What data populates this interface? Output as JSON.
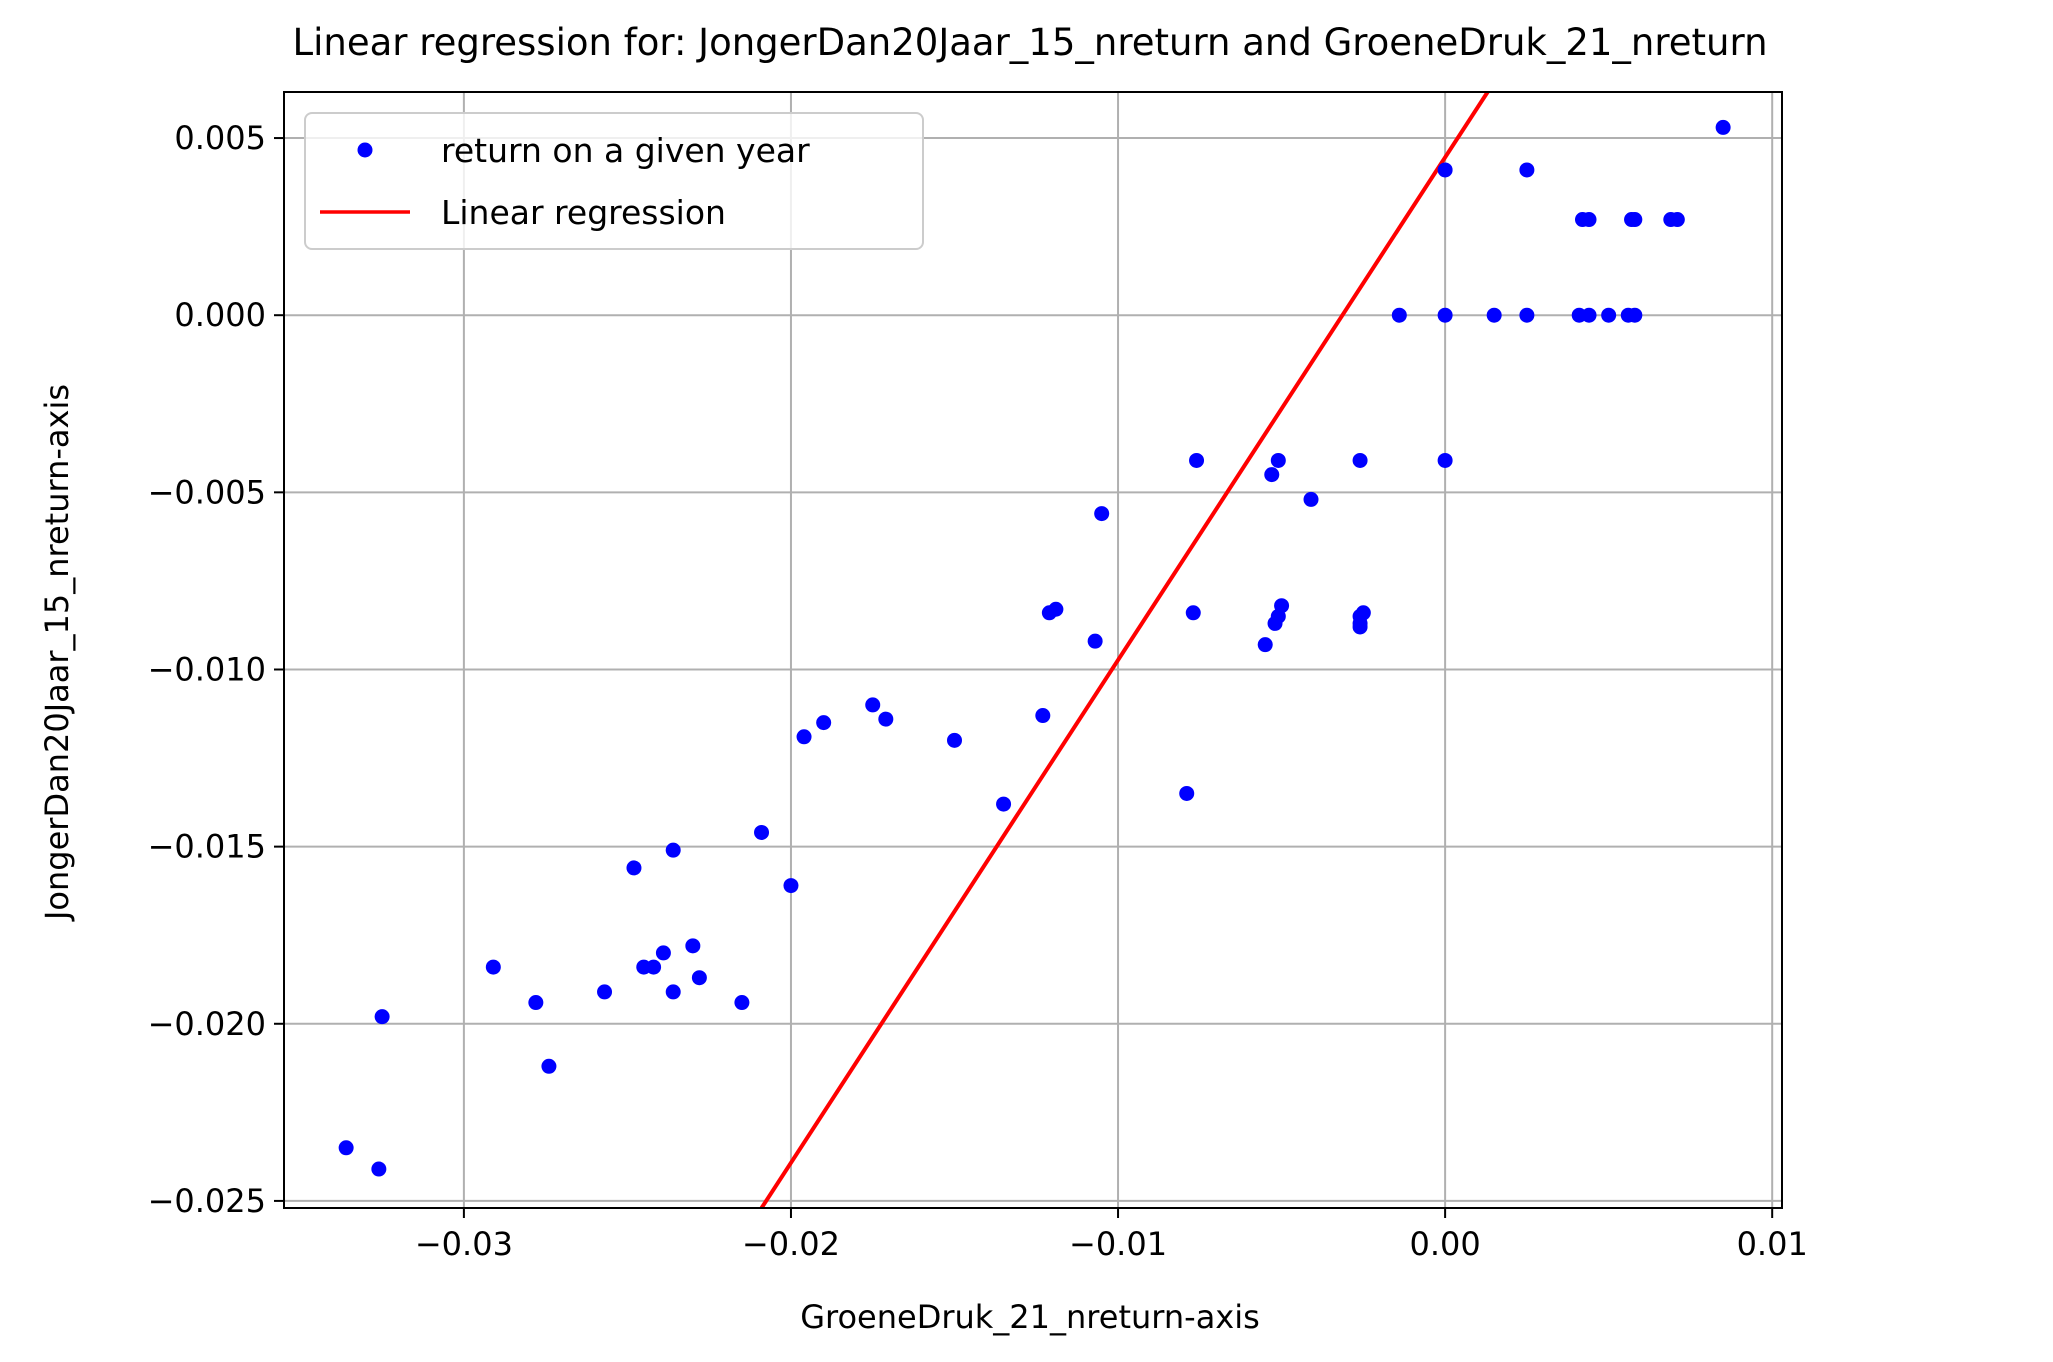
{
  "chart_data": {
    "type": "scatter",
    "title": "Linear regression for: JongerDan20Jaar_15_nreturn and GroeneDruk_21_nreturn",
    "xlabel": "GroeneDruk_21_nreturn-axis",
    "ylabel": "JongerDan20Jaar_15_nreturn-axis",
    "xlim": [
      -0.0355,
      0.0103
    ],
    "ylim": [
      -0.0252,
      0.0063
    ],
    "xticks": [
      -0.03,
      -0.02,
      -0.01,
      0.0,
      0.01
    ],
    "xtick_labels": [
      "−0.03",
      "−0.02",
      "−0.01",
      "0.00",
      "0.01"
    ],
    "yticks": [
      0.005,
      0.0,
      -0.005,
      -0.01,
      -0.015,
      -0.02,
      -0.025
    ],
    "ytick_labels": [
      "0.005",
      "0.000",
      "−0.005",
      "−0.010",
      "−0.015",
      "−0.020",
      "−0.025"
    ],
    "grid": true,
    "legend_position": "top-left",
    "colors": {
      "points": "#0000ff",
      "line": "#ff0000",
      "grid": "#b0b0b0"
    },
    "series": [
      {
        "name": "return on a given year",
        "kind": "scatter",
        "points": [
          [
            -0.0336,
            -0.0235
          ],
          [
            -0.0326,
            -0.0241
          ],
          [
            -0.0325,
            -0.0198
          ],
          [
            -0.0291,
            -0.0184
          ],
          [
            -0.0278,
            -0.0194
          ],
          [
            -0.0274,
            -0.0212
          ],
          [
            -0.0257,
            -0.0191
          ],
          [
            -0.0248,
            -0.0156
          ],
          [
            -0.0245,
            -0.0184
          ],
          [
            -0.0242,
            -0.0184
          ],
          [
            -0.0239,
            -0.018
          ],
          [
            -0.0236,
            -0.0191
          ],
          [
            -0.0236,
            -0.0151
          ],
          [
            -0.023,
            -0.0178
          ],
          [
            -0.0228,
            -0.0187
          ],
          [
            -0.0215,
            -0.0194
          ],
          [
            -0.0209,
            -0.0146
          ],
          [
            -0.02,
            -0.0161
          ],
          [
            -0.0196,
            -0.0119
          ],
          [
            -0.019,
            -0.0115
          ],
          [
            -0.0175,
            -0.011
          ],
          [
            -0.0171,
            -0.0114
          ],
          [
            -0.015,
            -0.012
          ],
          [
            -0.0135,
            -0.0138
          ],
          [
            -0.0123,
            -0.0113
          ],
          [
            -0.0121,
            -0.0084
          ],
          [
            -0.0119,
            -0.0083
          ],
          [
            -0.0107,
            -0.0092
          ],
          [
            -0.0105,
            -0.0056
          ],
          [
            -0.0079,
            -0.0135
          ],
          [
            -0.0077,
            -0.0084
          ],
          [
            -0.0076,
            -0.0041
          ],
          [
            -0.0055,
            -0.0093
          ],
          [
            -0.0053,
            -0.0045
          ],
          [
            -0.0052,
            -0.0087
          ],
          [
            -0.0051,
            -0.0085
          ],
          [
            -0.0051,
            -0.0041
          ],
          [
            -0.005,
            -0.0082
          ],
          [
            -0.0041,
            -0.0052
          ],
          [
            -0.0026,
            -0.0088
          ],
          [
            -0.0026,
            -0.0087
          ],
          [
            -0.0026,
            -0.0085
          ],
          [
            -0.0025,
            -0.0084
          ],
          [
            -0.0026,
            -0.0041
          ],
          [
            -0.0014,
            0.0
          ],
          [
            0.0,
            0.0
          ],
          [
            0.0,
            -0.0041
          ],
          [
            0.0,
            0.0041
          ],
          [
            0.0015,
            0.0
          ],
          [
            0.0025,
            0.0
          ],
          [
            0.0025,
            0.0041
          ],
          [
            0.0041,
            0.0
          ],
          [
            0.0042,
            0.0027
          ],
          [
            0.0044,
            0.0027
          ],
          [
            0.0044,
            0.0
          ],
          [
            0.005,
            0.0
          ],
          [
            0.0056,
            0.0
          ],
          [
            0.0057,
            0.0027
          ],
          [
            0.0058,
            0.0
          ],
          [
            0.0058,
            0.0027
          ],
          [
            0.0069,
            0.0027
          ],
          [
            0.0071,
            0.0027
          ],
          [
            0.0085,
            0.0053
          ]
        ]
      },
      {
        "name": "Linear regression",
        "kind": "line",
        "points": [
          [
            -0.0209,
            -0.0252
          ],
          [
            0.0013,
            0.0063
          ]
        ]
      }
    ]
  }
}
